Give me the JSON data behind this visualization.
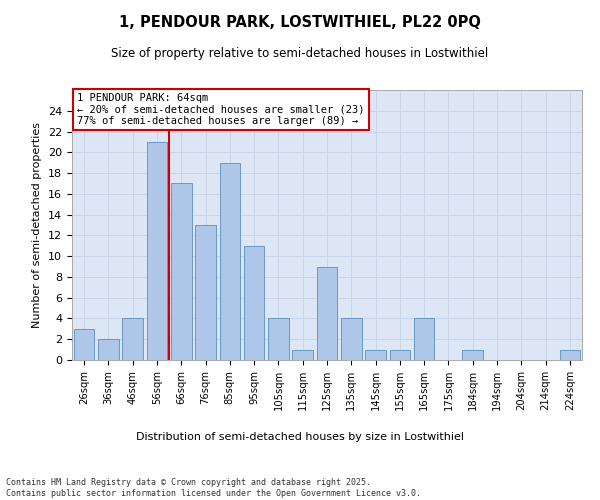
{
  "title1": "1, PENDOUR PARK, LOSTWITHIEL, PL22 0PQ",
  "title2": "Size of property relative to semi-detached houses in Lostwithiel",
  "xlabel": "Distribution of semi-detached houses by size in Lostwithiel",
  "ylabel": "Number of semi-detached properties",
  "categories": [
    "26sqm",
    "36sqm",
    "46sqm",
    "56sqm",
    "66sqm",
    "76sqm",
    "85sqm",
    "95sqm",
    "105sqm",
    "115sqm",
    "125sqm",
    "135sqm",
    "145sqm",
    "155sqm",
    "165sqm",
    "175sqm",
    "184sqm",
    "194sqm",
    "204sqm",
    "214sqm",
    "224sqm"
  ],
  "values": [
    3,
    2,
    4,
    21,
    17,
    13,
    19,
    11,
    4,
    1,
    9,
    4,
    1,
    1,
    4,
    0,
    1,
    0,
    0,
    0,
    1
  ],
  "bar_color": "#aec6e8",
  "bar_edge_color": "#5a8fc0",
  "grid_color": "#c8d4e8",
  "background_color": "#dde6f5",
  "property_label": "1 PENDOUR PARK: 64sqm",
  "smaller_pct": "20%",
  "smaller_count": 23,
  "larger_pct": "77%",
  "larger_count": 89,
  "vline_color": "#cc0000",
  "annotation_box_color": "#cc0000",
  "footer1": "Contains HM Land Registry data © Crown copyright and database right 2025.",
  "footer2": "Contains public sector information licensed under the Open Government Licence v3.0.",
  "ylim": [
    0,
    26
  ],
  "yticks": [
    0,
    2,
    4,
    6,
    8,
    10,
    12,
    14,
    16,
    18,
    20,
    22,
    24
  ]
}
